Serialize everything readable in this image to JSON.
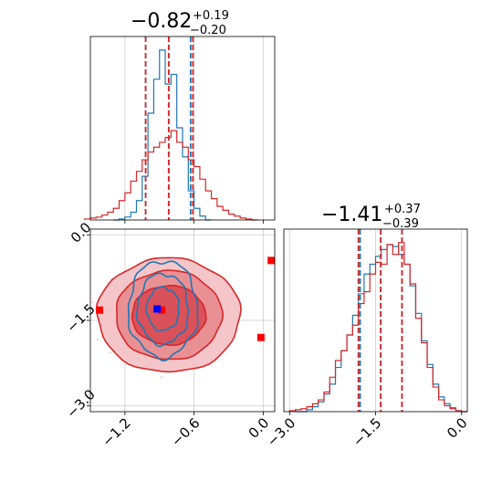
{
  "chart_data": [
    {
      "type": "histogram",
      "panel": "top-left",
      "title": {
        "main": "−0.82",
        "sup": "+0.19",
        "sub": "−0.20"
      },
      "xlim": [
        -1.5,
        0.1
      ],
      "grid": true,
      "series": [
        {
          "name": "",
          "color": "#1f77b4",
          "bin_edges": [
            -1.3,
            -1.25,
            -1.2,
            -1.15,
            -1.1,
            -1.05,
            -1.0,
            -0.95,
            -0.9,
            -0.85,
            -0.8,
            -0.75,
            -0.7,
            -0.65,
            -0.6,
            -0.55,
            -0.5
          ],
          "counts": [
            0,
            1,
            3,
            8,
            20,
            45,
            110,
            145,
            175,
            140,
            150,
            95,
            65,
            30,
            12,
            4,
            0
          ],
          "median": -0.82,
          "lo": -1.02,
          "hi": -0.63
        },
        {
          "name": "",
          "color": "#d62728",
          "bin_edges": [
            -1.55,
            -1.5,
            -1.45,
            -1.4,
            -1.35,
            -1.3,
            -1.25,
            -1.2,
            -1.15,
            -1.1,
            -1.05,
            -1.0,
            -0.95,
            -0.9,
            -0.85,
            -0.8,
            -0.75,
            -0.7,
            -0.65,
            -0.6,
            -0.55,
            -0.5,
            -0.45,
            -0.4,
            -0.35,
            -0.3,
            -0.25,
            -0.2,
            -0.15,
            -0.1
          ],
          "counts": [
            1,
            2,
            3,
            5,
            8,
            12,
            20,
            28,
            40,
            50,
            62,
            70,
            75,
            80,
            85,
            92,
            80,
            75,
            62,
            55,
            42,
            30,
            22,
            14,
            10,
            6,
            4,
            2,
            1,
            0
          ],
          "median": -0.82,
          "lo": -1.02,
          "hi": -0.61
        }
      ]
    },
    {
      "type": "histogram",
      "panel": "bottom-right",
      "title": {
        "main": "−1.41",
        "sup": "+0.37",
        "sub": "−0.39"
      },
      "xlim": [
        -3.1,
        0.1
      ],
      "xticks": [
        "−3.0",
        "−1.5",
        "0.0"
      ],
      "grid": true,
      "series": [
        {
          "name": "",
          "color": "#1f77b4",
          "bin_edges": [
            -2.9,
            -2.8,
            -2.7,
            -2.6,
            -2.5,
            -2.4,
            -2.3,
            -2.2,
            -2.1,
            -2.0,
            -1.9,
            -1.8,
            -1.7,
            -1.6,
            -1.5,
            -1.4,
            -1.3,
            -1.2,
            -1.1,
            -1.0,
            -0.9,
            -0.8,
            -0.7,
            -0.6,
            -0.5,
            -0.4,
            -0.3,
            -0.2,
            -0.1,
            0.0
          ],
          "counts": [
            0,
            0,
            2,
            5,
            10,
            18,
            28,
            45,
            62,
            78,
            98,
            120,
            140,
            150,
            158,
            165,
            170,
            168,
            160,
            150,
            128,
            100,
            72,
            48,
            28,
            15,
            8,
            4,
            1,
            0
          ],
          "median": -1.41,
          "lo": -1.77,
          "hi": -1.04
        },
        {
          "name": "",
          "color": "#d62728",
          "bin_edges": [
            -3.0,
            -2.9,
            -2.8,
            -2.7,
            -2.6,
            -2.5,
            -2.4,
            -2.3,
            -2.2,
            -2.1,
            -2.0,
            -1.9,
            -1.8,
            -1.7,
            -1.6,
            -1.5,
            -1.4,
            -1.3,
            -1.2,
            -1.1,
            -1.0,
            -0.9,
            -0.8,
            -0.7,
            -0.6,
            -0.5,
            -0.4,
            -0.3,
            -0.2,
            -0.1,
            0.0
          ],
          "counts": [
            1,
            2,
            3,
            5,
            8,
            12,
            20,
            35,
            52,
            62,
            78,
            88,
            110,
            122,
            140,
            152,
            150,
            170,
            160,
            172,
            150,
            130,
            95,
            70,
            45,
            25,
            12,
            6,
            3,
            1,
            0
          ],
          "median": -1.41,
          "lo": -1.8,
          "hi": -1.04
        }
      ]
    },
    {
      "type": "contour",
      "panel": "bottom-left",
      "xlim": [
        -1.5,
        0.1
      ],
      "ylim": [
        -3.1,
        0.1
      ],
      "xticks": [
        "−1.2",
        "−0.6",
        "0.0"
      ],
      "yticks": [
        "0.0",
        "−1.5",
        "−3.0"
      ],
      "grid": true,
      "series": [
        {
          "name": "",
          "color": "#d62728",
          "fill": true,
          "center": [
            -0.82,
            -1.41
          ],
          "levels": [
            {
              "rx": 0.62,
              "ry": 1.0
            },
            {
              "rx": 0.46,
              "ry": 0.78
            },
            {
              "rx": 0.32,
              "ry": 0.52
            }
          ],
          "points": [
            [
              -1.42,
              -1.32
            ],
            [
              -0.02,
              -1.8
            ],
            [
              0.07,
              -0.45
            ],
            [
              -0.92,
              -1.3
            ],
            [
              -0.88,
              -1.32
            ]
          ]
        },
        {
          "name": "",
          "color": "#1f77b4",
          "fill": false,
          "center": [
            -0.87,
            -1.3
          ],
          "levels": [
            {
              "rx": 0.3,
              "ry": 0.85
            },
            {
              "rx": 0.22,
              "ry": 0.62
            },
            {
              "rx": 0.14,
              "ry": 0.38
            }
          ],
          "points": [
            [
              -0.92,
              -1.3
            ]
          ]
        }
      ]
    }
  ]
}
